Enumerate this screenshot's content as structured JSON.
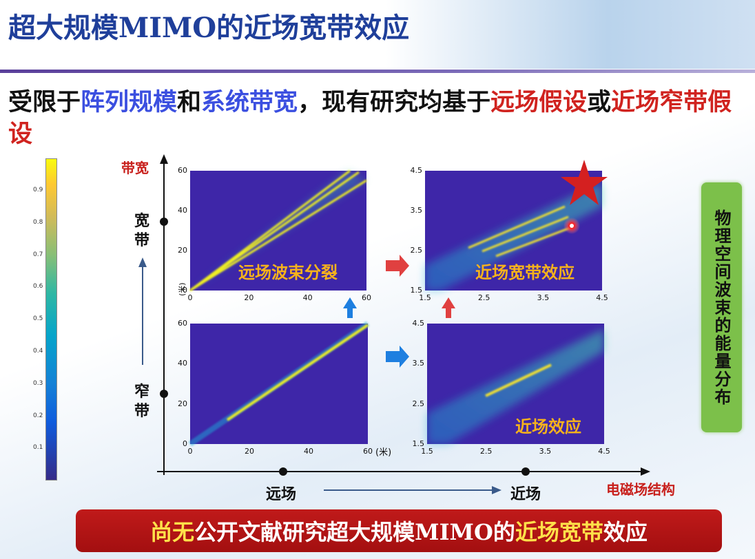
{
  "header": {
    "title": "超大规模MIMO的近场宽带效应"
  },
  "subtitle": {
    "segments": [
      {
        "text": "受限于",
        "color": "#111111"
      },
      {
        "text": "阵列规模",
        "color": "#3b4fe0"
      },
      {
        "text": "和",
        "color": "#111111"
      },
      {
        "text": "系统带宽",
        "color": "#3b4fe0"
      },
      {
        "text": "，现有研究均基于",
        "color": "#111111"
      },
      {
        "text": "远场假设",
        "color": "#d0231f"
      },
      {
        "text": "或",
        "color": "#111111"
      },
      {
        "text": "近场窄带假设",
        "color": "#d0231f"
      }
    ]
  },
  "colorbar": {
    "ticks": [
      "0.9",
      "0.8",
      "0.7",
      "0.6",
      "0.5",
      "0.4",
      "0.3",
      "0.2",
      "0.1"
    ]
  },
  "diagram": {
    "y_axis_label": "带宽",
    "y_points": [
      "宽带",
      "窄带"
    ],
    "x_points": [
      "远场",
      "近场"
    ],
    "x_axis_label": "电磁场结构",
    "unit": "(米)"
  },
  "panels": [
    {
      "label": "远场波束分裂",
      "xticks": [
        "0",
        "20",
        "40",
        "60"
      ],
      "yticks": [
        "0",
        "20",
        "40",
        "60"
      ]
    },
    {
      "label": "近场宽带效应",
      "xticks": [
        "1.5",
        "2.5",
        "3.5",
        "4.5"
      ],
      "yticks": [
        "1.5",
        "2.5",
        "3.5",
        "4.5"
      ]
    },
    {
      "label": "",
      "xticks": [
        "0",
        "20",
        "40",
        "60"
      ],
      "yticks": [
        "0",
        "20",
        "40",
        "60"
      ]
    },
    {
      "label": "近场效应",
      "xticks": [
        "1.5",
        "2.5",
        "3.5",
        "4.5"
      ],
      "yticks": [
        "1.5",
        "2.5",
        "3.5",
        "4.5"
      ]
    }
  ],
  "side_label": "物理空间波束的能量分布",
  "footer": {
    "segments": [
      {
        "text": "尚无",
        "color": "#ffe14a"
      },
      {
        "text": "公开文献研究超大规模MIMO的",
        "color": "#ffffff"
      },
      {
        "text": "近场宽带",
        "color": "#ffe14a"
      },
      {
        "text": "效应",
        "color": "#ffffff"
      }
    ]
  }
}
